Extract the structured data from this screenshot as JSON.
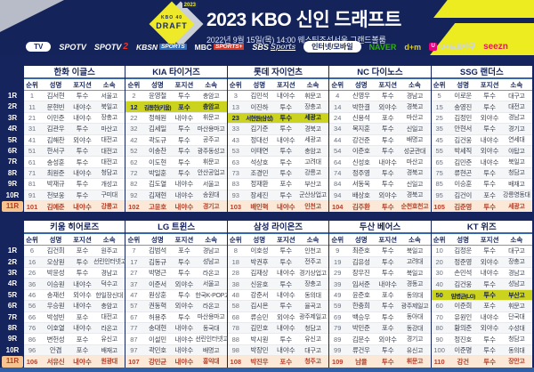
{
  "header": {
    "title": "2023 KBO 신인 드래프트",
    "subtitle": "2022년 9월 15일(목) 14:00 웨스틴조선서울 그랜드볼룸",
    "logo": {
      "kbo": "KBO 40",
      "draft": "DRAFT",
      "year": "2023"
    }
  },
  "broadcast": {
    "groups": [
      {
        "pill": "TV",
        "channels": [
          {
            "id": "spotv",
            "label": "SPOTV"
          },
          {
            "id": "spotv2",
            "label": "SPOTV",
            "label2": "2"
          },
          {
            "id": "kbsn",
            "label": "KBSN",
            "label2": "SPORTS"
          },
          {
            "id": "mbc",
            "label": "MBC",
            "label2": "SPORTS+"
          },
          {
            "id": "sbs",
            "label": "SBS",
            "label2": "Sports"
          }
        ]
      },
      {
        "pill": "인터넷/모바일",
        "channels": [
          {
            "id": "naver",
            "label": "NAVER"
          },
          {
            "id": "daum",
            "label": "d+m"
          },
          {
            "id": "uplus",
            "icon": "U",
            "label": "U+프로야구"
          },
          {
            "id": "seezn",
            "label": "seezn"
          }
        ]
      }
    ]
  },
  "table": {
    "columns": [
      "순위",
      "성명",
      "포지션",
      "소속"
    ],
    "round_labels": [
      "1R",
      "2R",
      "3R",
      "4R",
      "5R",
      "6R",
      "7R",
      "8R",
      "9R",
      "10R",
      "11R"
    ]
  },
  "colors": {
    "navy": "#14235a",
    "accent_yellow": "#ecec20",
    "highlight_row": "#ccd31f",
    "round11_row": "#fbe8d6",
    "round11_text": "#b5402a",
    "footer_blue": "#2e5fa8"
  },
  "teams": [
    {
      "name": "한화 이글스",
      "rows": [
        {
          "no": "1",
          "name": "김서현",
          "pos": "투수",
          "org": "서울고"
        },
        {
          "no": "11",
          "name": "문현빈",
          "pos": "내야수",
          "org": "북일고"
        },
        {
          "no": "21",
          "name": "이민준",
          "pos": "내야수",
          "org": "장충고"
        },
        {
          "no": "31",
          "name": "김관우",
          "pos": "투수",
          "org": "마산고"
        },
        {
          "no": "41",
          "name": "김해찬",
          "pos": "외야수",
          "org": "대전고"
        },
        {
          "no": "51",
          "name": "한서구",
          "pos": "투수",
          "org": "대전고"
        },
        {
          "no": "61",
          "name": "송성훈",
          "pos": "투수",
          "org": "대전고"
        },
        {
          "no": "71",
          "name": "최원준",
          "pos": "내야수",
          "org": "청담고"
        },
        {
          "no": "81",
          "name": "박재규",
          "pos": "투수",
          "org": "개성고"
        },
        {
          "no": "91",
          "name": "천보웅",
          "pos": "투수",
          "org": "구미대"
        },
        {
          "no": "101",
          "name": "김예준",
          "pos": "내야수",
          "org": "강릉고"
        }
      ]
    },
    {
      "name": "KIA 타이거즈",
      "rows": [
        {
          "no": "2",
          "name": "윤영철",
          "pos": "투수",
          "org": "충암고"
        },
        {
          "no": "12",
          "name": "김동헌(키움)",
          "pos": "포수",
          "org": "충암고",
          "hl": true
        },
        {
          "no": "22",
          "name": "정해원",
          "pos": "내야수",
          "org": "휘문고"
        },
        {
          "no": "32",
          "name": "김세일",
          "pos": "투수",
          "org": "마산용마고"
        },
        {
          "no": "42",
          "name": "곽도규",
          "pos": "투수",
          "org": "공주고"
        },
        {
          "no": "52",
          "name": "이송찬",
          "pos": "투수",
          "org": "광주동성고"
        },
        {
          "no": "62",
          "name": "이도현",
          "pos": "투수",
          "org": "휘문고"
        },
        {
          "no": "72",
          "name": "박일훈",
          "pos": "투수",
          "org": "안산공업고"
        },
        {
          "no": "82",
          "name": "김도열",
          "pos": "내야수",
          "org": "서울고"
        },
        {
          "no": "92",
          "name": "김재현",
          "pos": "내야수",
          "org": "송원대"
        },
        {
          "no": "102",
          "name": "고윤호",
          "pos": "내야수",
          "org": "경기고"
        }
      ]
    },
    {
      "name": "롯데 자이언츠",
      "rows": [
        {
          "no": "3",
          "name": "김민석",
          "pos": "내야수",
          "org": "휘문고"
        },
        {
          "no": "13",
          "name": "이진하",
          "pos": "투수",
          "org": "장충고"
        },
        {
          "no": "23",
          "name": "서현원(삼성)",
          "pos": "투수",
          "org": "세광고",
          "hl": true
        },
        {
          "no": "33",
          "name": "김기준",
          "pos": "투수",
          "org": "경북고"
        },
        {
          "no": "43",
          "name": "정대선",
          "pos": "내야수",
          "org": "세광고"
        },
        {
          "no": "53",
          "name": "이태연",
          "pos": "투수",
          "org": "충암고"
        },
        {
          "no": "63",
          "name": "석상호",
          "pos": "투수",
          "org": "고려대"
        },
        {
          "no": "73",
          "name": "조경민",
          "pos": "투수",
          "org": "강릉고"
        },
        {
          "no": "83",
          "name": "정재환",
          "pos": "포수",
          "org": "부산고"
        },
        {
          "no": "93",
          "name": "장세진",
          "pos": "투수",
          "org": "군산상업고"
        },
        {
          "no": "103",
          "name": "배인혁",
          "pos": "내야수",
          "org": "인천고"
        }
      ]
    },
    {
      "name": "NC 다이노스",
      "rows": [
        {
          "no": "4",
          "name": "신영우",
          "pos": "투수",
          "org": "경남고"
        },
        {
          "no": "14",
          "name": "박한결",
          "pos": "외야수",
          "org": "경북고"
        },
        {
          "no": "24",
          "name": "신용석",
          "pos": "포수",
          "org": "마산고"
        },
        {
          "no": "34",
          "name": "목지훈",
          "pos": "투수",
          "org": "신일고"
        },
        {
          "no": "44",
          "name": "강건준",
          "pos": "투수",
          "org": "배명고"
        },
        {
          "no": "54",
          "name": "이준호",
          "pos": "투수",
          "org": "성균관대"
        },
        {
          "no": "64",
          "name": "신성호",
          "pos": "내야수",
          "org": "마산고"
        },
        {
          "no": "74",
          "name": "정주영",
          "pos": "투수",
          "org": "경북고"
        },
        {
          "no": "84",
          "name": "서동욱",
          "pos": "투수",
          "org": "신일고"
        },
        {
          "no": "94",
          "name": "배상호",
          "pos": "외야수",
          "org": "경북고"
        },
        {
          "no": "104",
          "name": "김주환",
          "pos": "투수",
          "org": "순천효천고"
        }
      ]
    },
    {
      "name": "SSG 랜더스",
      "rows": [
        {
          "no": "5",
          "name": "이로운",
          "pos": "투수",
          "org": "대구고"
        },
        {
          "no": "15",
          "name": "송영진",
          "pos": "투수",
          "org": "대전고"
        },
        {
          "no": "25",
          "name": "김정민",
          "pos": "외야수",
          "org": "경남고"
        },
        {
          "no": "35",
          "name": "안현서",
          "pos": "투수",
          "org": "경기고"
        },
        {
          "no": "45",
          "name": "김건웅",
          "pos": "내야수",
          "org": "연세대"
        },
        {
          "no": "55",
          "name": "박세직",
          "pos": "외야수",
          "org": "야탑고"
        },
        {
          "no": "65",
          "name": "김민준",
          "pos": "내야수",
          "org": "북일고"
        },
        {
          "no": "75",
          "name": "류현곤",
          "pos": "투수",
          "org": "청담고"
        },
        {
          "no": "85",
          "name": "이승훈",
          "pos": "투수",
          "org": "배재고"
        },
        {
          "no": "95",
          "name": "김건이",
          "pos": "포수",
          "org": "강릉영동대"
        },
        {
          "no": "105",
          "name": "김준영",
          "pos": "투수",
          "org": "세광고"
        }
      ]
    },
    {
      "name": "키움 히어로즈",
      "rows": [
        {
          "no": "6",
          "name": "김건희",
          "pos": "포수",
          "org": "원주고"
        },
        {
          "no": "16",
          "name": "오상원",
          "pos": "투수",
          "org": "선린인터넷고"
        },
        {
          "no": "26",
          "name": "박윤성",
          "pos": "투수",
          "org": "경남고"
        },
        {
          "no": "36",
          "name": "이승원",
          "pos": "내야수",
          "org": "덕수고"
        },
        {
          "no": "46",
          "name": "송재선",
          "pos": "외야수",
          "org": "한일장신대"
        },
        {
          "no": "56",
          "name": "우승원",
          "pos": "내야수",
          "org": "충암고"
        },
        {
          "no": "66",
          "name": "박성빈",
          "pos": "포수",
          "org": "대전고"
        },
        {
          "no": "76",
          "name": "이호열",
          "pos": "내야수",
          "org": "라온고"
        },
        {
          "no": "86",
          "name": "변헌성",
          "pos": "포수",
          "org": "유신고"
        },
        {
          "no": "96",
          "name": "안겸",
          "pos": "포수",
          "org": "배재고"
        },
        {
          "no": "106",
          "name": "서유신",
          "pos": "내야수",
          "org": "원광대"
        }
      ]
    },
    {
      "name": "LG 트윈스",
      "rows": [
        {
          "no": "7",
          "name": "김범석",
          "pos": "포수",
          "org": "경남고"
        },
        {
          "no": "17",
          "name": "김동규",
          "pos": "투수",
          "org": "성남고"
        },
        {
          "no": "27",
          "name": "박명근",
          "pos": "투수",
          "org": "라온고"
        },
        {
          "no": "37",
          "name": "이준서",
          "pos": "외야수",
          "org": "서울고"
        },
        {
          "no": "47",
          "name": "원상훈",
          "pos": "투수",
          "org": "한국K-POP고"
        },
        {
          "no": "57",
          "name": "권동혁",
          "pos": "외야수",
          "org": "라온고"
        },
        {
          "no": "67",
          "name": "허용주",
          "pos": "투수",
          "org": "마산용마고"
        },
        {
          "no": "77",
          "name": "송대현",
          "pos": "내야수",
          "org": "동국대"
        },
        {
          "no": "87",
          "name": "이설민",
          "pos": "내야수",
          "org": "선린인터넷고"
        },
        {
          "no": "97",
          "name": "곽민호",
          "pos": "내야수",
          "org": "배명고"
        },
        {
          "no": "107",
          "name": "강민균",
          "pos": "내야수",
          "org": "홍익대"
        }
      ]
    },
    {
      "name": "삼성 라이온즈",
      "rows": [
        {
          "no": "8",
          "name": "이호성",
          "pos": "투수",
          "org": "인천고"
        },
        {
          "no": "18",
          "name": "박권후",
          "pos": "투수",
          "org": "전주고"
        },
        {
          "no": "28",
          "name": "김재상",
          "pos": "내야수",
          "org": "경기상업고"
        },
        {
          "no": "38",
          "name": "신윤호",
          "pos": "투수",
          "org": "장충고"
        },
        {
          "no": "48",
          "name": "강준서",
          "pos": "내야수",
          "org": "동의대"
        },
        {
          "no": "58",
          "name": "김시온",
          "pos": "투수",
          "org": "율곡고"
        },
        {
          "no": "68",
          "name": "류승민",
          "pos": "외야수",
          "org": "광주제일고"
        },
        {
          "no": "78",
          "name": "김민호",
          "pos": "내야수",
          "org": "청담고"
        },
        {
          "no": "88",
          "name": "박시원",
          "pos": "투수",
          "org": "유신고"
        },
        {
          "no": "98",
          "name": "박장민",
          "pos": "내야수",
          "org": "대구고"
        },
        {
          "no": "108",
          "name": "박진우",
          "pos": "포수",
          "org": "청주고"
        }
      ]
    },
    {
      "name": "두산 베어스",
      "rows": [
        {
          "no": "9",
          "name": "최준호",
          "pos": "투수",
          "org": "북일고"
        },
        {
          "no": "19",
          "name": "김유성",
          "pos": "투수",
          "org": "고려대"
        },
        {
          "no": "29",
          "name": "장우진",
          "pos": "투수",
          "org": "북일고"
        },
        {
          "no": "39",
          "name": "임서준",
          "pos": "내야수",
          "org": "경동고"
        },
        {
          "no": "49",
          "name": "윤준호",
          "pos": "포수",
          "org": "동의대"
        },
        {
          "no": "59",
          "name": "한충희",
          "pos": "투수",
          "org": "광주제일고"
        },
        {
          "no": "69",
          "name": "백승우",
          "pos": "투수",
          "org": "동아대"
        },
        {
          "no": "79",
          "name": "박민준",
          "pos": "포수",
          "org": "동강대"
        },
        {
          "no": "89",
          "name": "김문수",
          "pos": "외야수",
          "org": "경기고"
        },
        {
          "no": "99",
          "name": "류건우",
          "pos": "투수",
          "org": "유신고"
        },
        {
          "no": "109",
          "name": "남율",
          "pos": "투수",
          "org": "휘문고"
        }
      ]
    },
    {
      "name": "KT 위즈",
      "rows": [
        {
          "no": "10",
          "name": "김정운",
          "pos": "투수",
          "org": "대구고"
        },
        {
          "no": "20",
          "name": "정준영",
          "pos": "외야수",
          "org": "장충고"
        },
        {
          "no": "30",
          "name": "손민석",
          "pos": "내야수",
          "org": "경남고"
        },
        {
          "no": "40",
          "name": "김건웅",
          "pos": "투수",
          "org": "성남고"
        },
        {
          "no": "50",
          "name": "임병균(LG)",
          "pos": "투수",
          "org": "부산고",
          "hl": true
        },
        {
          "no": "60",
          "name": "이준희",
          "pos": "포수",
          "org": "휘문고"
        },
        {
          "no": "70",
          "name": "유원인",
          "pos": "내야수",
          "org": "단국대"
        },
        {
          "no": "80",
          "name": "황의준",
          "pos": "외야수",
          "org": "수성대"
        },
        {
          "no": "90",
          "name": "정진호",
          "pos": "투수",
          "org": "청담고"
        },
        {
          "no": "100",
          "name": "이준명",
          "pos": "투수",
          "org": "동의대"
        },
        {
          "no": "110",
          "name": "강건",
          "pos": "투수",
          "org": "장안고"
        }
      ]
    }
  ]
}
